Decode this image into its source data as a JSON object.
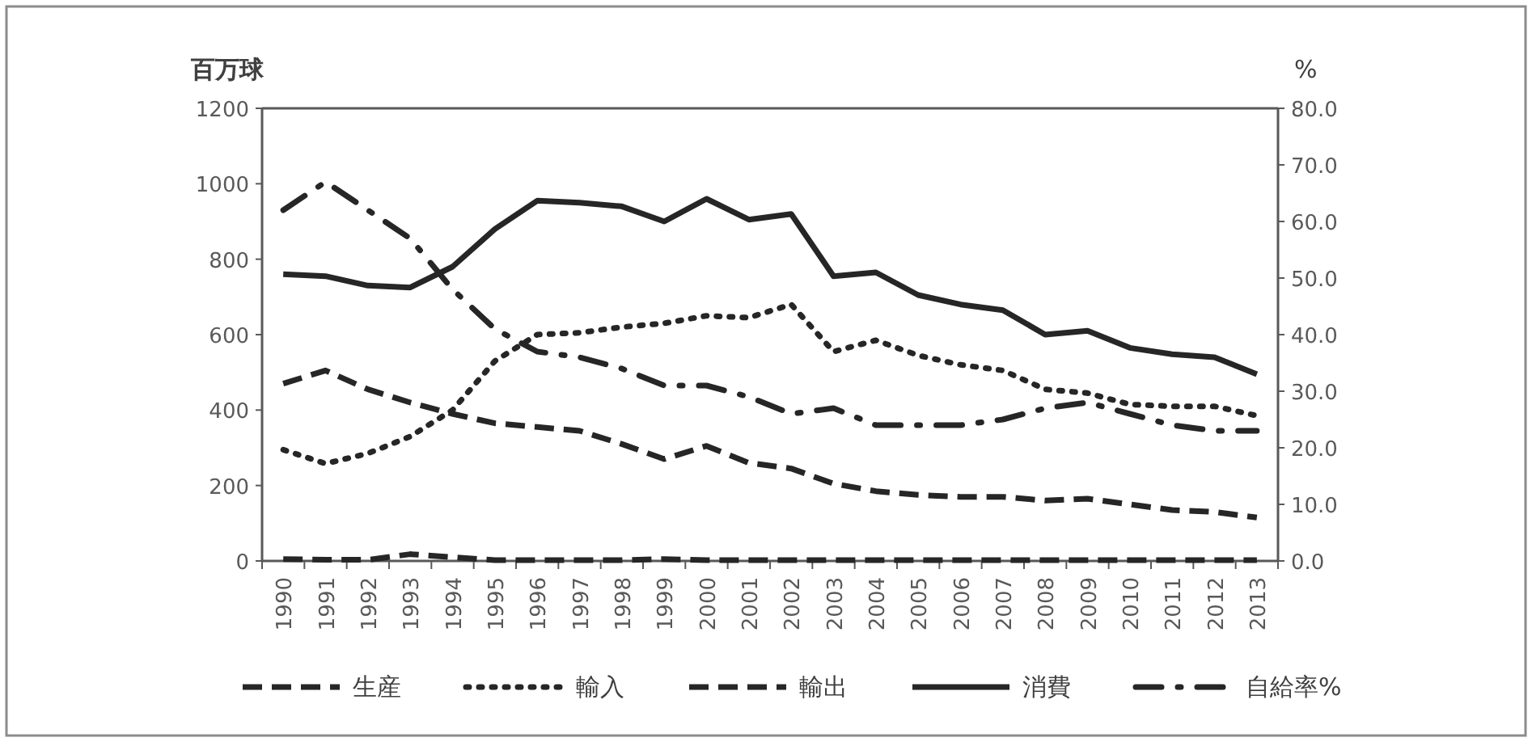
{
  "chart_data": {
    "type": "line",
    "categories": [
      "1990",
      "1991",
      "1992",
      "1993",
      "1994",
      "1995",
      "1996",
      "1997",
      "1998",
      "1999",
      "2000",
      "2001",
      "2002",
      "2003",
      "2004",
      "2005",
      "2006",
      "2007",
      "2008",
      "2009",
      "2010",
      "2011",
      "2012",
      "2013"
    ],
    "ylabel": "百万球",
    "y2label": "%",
    "ylim": [
      0,
      1200
    ],
    "yticks": [
      0,
      200,
      400,
      600,
      800,
      1000,
      1200
    ],
    "y2lim": [
      0,
      80
    ],
    "y2ticks": [
      {
        "value": 0,
        "label": "0.0"
      },
      {
        "value": 10,
        "label": "10.0"
      },
      {
        "value": 20,
        "label": "20.0"
      },
      {
        "value": 30,
        "label": "30.0"
      },
      {
        "value": 40,
        "label": "40.0"
      },
      {
        "value": 50,
        "label": "50.0"
      },
      {
        "value": 60,
        "label": "60.0"
      },
      {
        "value": 70,
        "label": "70.0"
      },
      {
        "value": 80,
        "label": "80.0"
      }
    ],
    "grid": false,
    "legend": "bottom",
    "marker": "none",
    "series": [
      {
        "name": "生産",
        "color": "#262626",
        "line_style": "dashed",
        "values": [
          470,
          505,
          455,
          420,
          390,
          365,
          355,
          345,
          310,
          270,
          305,
          260,
          245,
          205,
          185,
          175,
          170,
          170,
          160,
          165,
          150,
          135,
          130,
          115
        ]
      },
      {
        "name": "輸入",
        "color": "#262626",
        "line_style": "dotted",
        "values": [
          295,
          258,
          285,
          330,
          400,
          530,
          600,
          605,
          620,
          630,
          650,
          645,
          680,
          555,
          585,
          545,
          520,
          505,
          455,
          445,
          415,
          410,
          410,
          385
        ]
      },
      {
        "name": "輸出",
        "color": "#262626",
        "line_style": "dashed",
        "values": [
          5,
          3,
          3,
          18,
          10,
          2,
          2,
          2,
          2,
          5,
          2,
          2,
          2,
          2,
          2,
          2,
          2,
          2,
          2,
          2,
          2,
          2,
          2,
          2
        ]
      },
      {
        "name": "消費",
        "color": "#262626",
        "line_style": "solid",
        "values": [
          760,
          755,
          730,
          725,
          780,
          880,
          955,
          950,
          940,
          900,
          960,
          905,
          920,
          755,
          765,
          705,
          680,
          665,
          600,
          610,
          565,
          548,
          540,
          495
        ]
      },
      {
        "name": "自給率%",
        "color": "#262626",
        "line_style": "dashdot",
        "axis": "y2",
        "values": [
          62,
          67,
          62,
          57,
          48,
          41,
          37,
          36,
          34,
          31,
          31,
          29,
          26,
          27,
          24,
          24,
          24,
          25,
          27,
          28,
          26,
          24,
          23,
          23
        ]
      }
    ]
  }
}
